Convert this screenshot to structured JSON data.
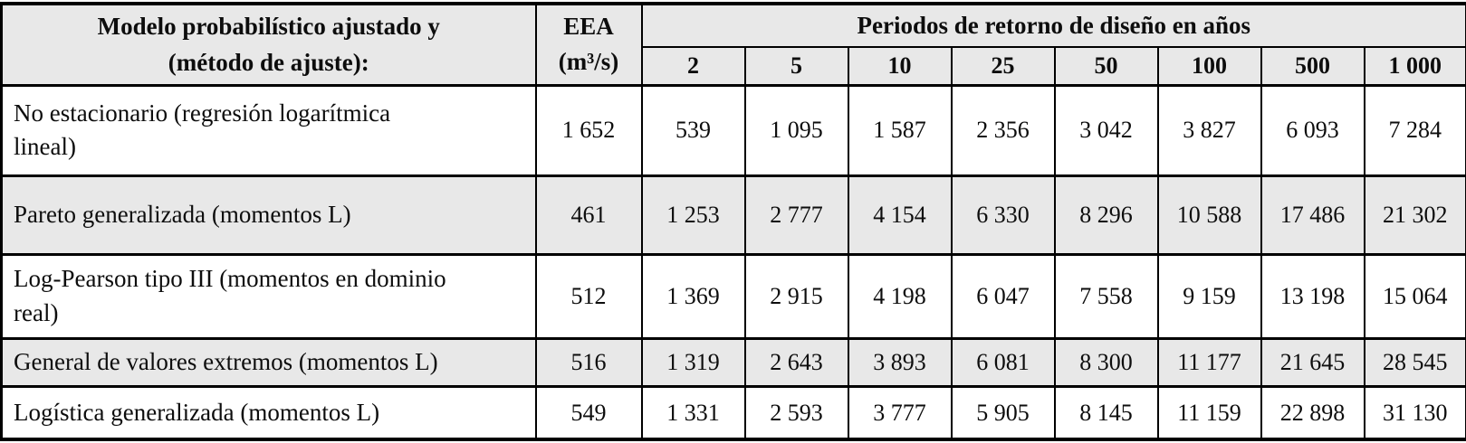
{
  "table": {
    "header": {
      "model_col_line1": "Modelo probabilístico ajustado y",
      "model_col_line2": "(método de ajuste):",
      "eea_line1": "EEA",
      "eea_line2": "(m³/s)",
      "periods_group": "Periodos de retorno de diseño en años",
      "period_columns": [
        "2",
        "5",
        "10",
        "25",
        "50",
        "100",
        "500",
        "1 000"
      ]
    },
    "rows": [
      {
        "model": "No estacionario (regresión logarítmica lineal)",
        "eea": "1 652",
        "values": [
          "539",
          "1 095",
          "1 587",
          "2 356",
          "3 042",
          "3 827",
          "6 093",
          "7 284"
        ]
      },
      {
        "model": "Pareto generalizada (momentos L)",
        "eea": "461",
        "values": [
          "1 253",
          "2 777",
          "4 154",
          "6 330",
          "8 296",
          "10 588",
          "17 486",
          "21 302"
        ]
      },
      {
        "model": "Log-Pearson tipo III (momentos en dominio real)",
        "eea": "512",
        "values": [
          "1 369",
          "2 915",
          "4 198",
          "6 047",
          "7 558",
          "9 159",
          "13 198",
          "15 064"
        ]
      },
      {
        "model": "General de valores extremos (momentos L)",
        "eea": "516",
        "values": [
          "1 319",
          "2 643",
          "3 893",
          "6 081",
          "8 300",
          "11 177",
          "21 645",
          "28 545"
        ]
      },
      {
        "model": "Logística generalizada (momentos L)",
        "eea": "549",
        "values": [
          "1 331",
          "2 593",
          "3 777",
          "5 905",
          "8 145",
          "11 159",
          "22 898",
          "31 130"
        ]
      }
    ]
  },
  "colors": {
    "header_bg": "#e8e8e8",
    "row_stripe_bg": "#e8e8e8",
    "border": "#000000",
    "text": "#0d0d0d"
  }
}
